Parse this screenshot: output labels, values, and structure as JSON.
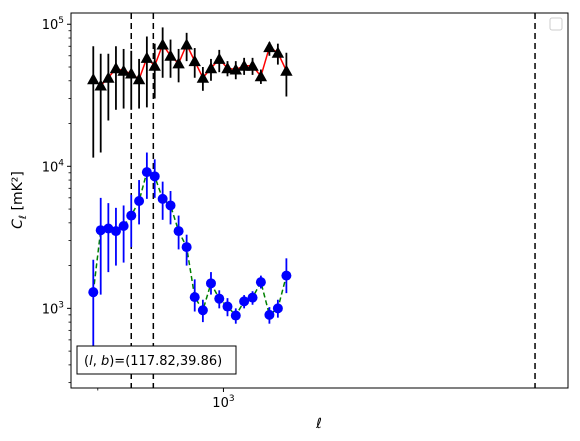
{
  "chart_data": {
    "type": "scatter",
    "xscale": "log",
    "yscale": "log",
    "xlim": [
      880,
      1335
    ],
    "ylim": [
      275,
      120000
    ],
    "xlabel": "ℓ",
    "ylabel": "C_ℓ  [mK²]",
    "x_ticks": [
      {
        "value": 1000,
        "label": "10^3"
      }
    ],
    "y_ticks": [
      {
        "value": 1000,
        "label": "10^3"
      },
      {
        "value": 10000,
        "label": "10^4"
      },
      {
        "value": 100000,
        "label": "10^5"
      }
    ],
    "vlines": [
      925.6,
      942.9,
      1298.6
    ],
    "legend": {
      "placement": "top-right",
      "entries": []
    },
    "annotation": {
      "text": "(l, b)=(117.82,39.86)",
      "placement": "bottom-left"
    },
    "series": [
      {
        "marker": "triangle",
        "marker_color": "#000000",
        "line_color": "#ff0000",
        "line_style": "solid",
        "errorbar_color": "#000000",
        "points": [
          {
            "x": 896.6,
            "y": 41000,
            "ylo": 11500,
            "yhi": 70000
          },
          {
            "x": 902.2,
            "y": 37000,
            "ylo": 12500,
            "yhi": 62000
          },
          {
            "x": 908.0,
            "y": 42000,
            "ylo": 21000,
            "yhi": 62000
          },
          {
            "x": 913.8,
            "y": 49000,
            "ylo": 25000,
            "yhi": 70000
          },
          {
            "x": 919.7,
            "y": 47000,
            "ylo": 25500,
            "yhi": 67000
          },
          {
            "x": 925.6,
            "y": 45000,
            "ylo": 25000,
            "yhi": 65000
          },
          {
            "x": 931.7,
            "y": 41000,
            "ylo": 25500,
            "yhi": 57000
          },
          {
            "x": 937.8,
            "y": 58000,
            "ylo": 26000,
            "yhi": 82000
          },
          {
            "x": 944.0,
            "y": 51000,
            "ylo": 30000,
            "yhi": 73000
          },
          {
            "x": 950.3,
            "y": 72000,
            "ylo": 42000,
            "yhi": 95000
          },
          {
            "x": 956.6,
            "y": 60000,
            "ylo": 42000,
            "yhi": 78000
          },
          {
            "x": 963.1,
            "y": 53000,
            "ylo": 39000,
            "yhi": 67000
          },
          {
            "x": 969.6,
            "y": 72000,
            "ylo": 55000,
            "yhi": 87000
          },
          {
            "x": 976.2,
            "y": 55000,
            "ylo": 42000,
            "yhi": 68000
          },
          {
            "x": 982.9,
            "y": 42000,
            "ylo": 34000,
            "yhi": 50000
          },
          {
            "x": 989.6,
            "y": 49000,
            "ylo": 40000,
            "yhi": 57000
          },
          {
            "x": 996.5,
            "y": 57000,
            "ylo": 46000,
            "yhi": 66000
          },
          {
            "x": 1003.4,
            "y": 49000,
            "ylo": 43000,
            "yhi": 55000
          },
          {
            "x": 1010.4,
            "y": 48000,
            "ylo": 41000,
            "yhi": 55000
          },
          {
            "x": 1017.5,
            "y": 51000,
            "ylo": 44000,
            "yhi": 58000
          },
          {
            "x": 1024.7,
            "y": 51000,
            "ylo": 44000,
            "yhi": 58000
          },
          {
            "x": 1031.9,
            "y": 43000,
            "ylo": 38000,
            "yhi": 48000
          },
          {
            "x": 1039.3,
            "y": 69000,
            "ylo": 60000,
            "yhi": 75000
          },
          {
            "x": 1046.7,
            "y": 63000,
            "ylo": 52000,
            "yhi": 73000
          },
          {
            "x": 1054.2,
            "y": 47000,
            "ylo": 31000,
            "yhi": 63000
          }
        ]
      },
      {
        "marker": "circle",
        "marker_color": "#0000ff",
        "line_color": "#008000",
        "line_style": "dashed",
        "errorbar_color": "#0000ff",
        "points": [
          {
            "x": 896.6,
            "y": 1300,
            "ylo": 450,
            "yhi": 2200
          },
          {
            "x": 902.2,
            "y": 3550,
            "ylo": 1250,
            "yhi": 6000
          },
          {
            "x": 908.0,
            "y": 3650,
            "ylo": 1800,
            "yhi": 5500
          },
          {
            "x": 913.8,
            "y": 3500,
            "ylo": 2000,
            "yhi": 5100
          },
          {
            "x": 919.7,
            "y": 3800,
            "ylo": 2100,
            "yhi": 5300
          },
          {
            "x": 925.6,
            "y": 4500,
            "ylo": 2700,
            "yhi": 6300
          },
          {
            "x": 931.7,
            "y": 5700,
            "ylo": 3900,
            "yhi": 8000
          },
          {
            "x": 937.8,
            "y": 9100,
            "ylo": 5900,
            "yhi": 12500
          },
          {
            "x": 944.0,
            "y": 8500,
            "ylo": 6000,
            "yhi": 11200
          },
          {
            "x": 950.3,
            "y": 5900,
            "ylo": 4200,
            "yhi": 7800
          },
          {
            "x": 956.6,
            "y": 5300,
            "ylo": 3900,
            "yhi": 6700
          },
          {
            "x": 963.1,
            "y": 3500,
            "ylo": 2600,
            "yhi": 4500
          },
          {
            "x": 969.6,
            "y": 2700,
            "ylo": 2000,
            "yhi": 3300
          },
          {
            "x": 976.2,
            "y": 1200,
            "ylo": 950,
            "yhi": 1600
          },
          {
            "x": 982.9,
            "y": 970,
            "ylo": 800,
            "yhi": 1150
          },
          {
            "x": 989.6,
            "y": 1500,
            "ylo": 1250,
            "yhi": 1800
          },
          {
            "x": 996.5,
            "y": 1170,
            "ylo": 1000,
            "yhi": 1340
          },
          {
            "x": 1003.4,
            "y": 1030,
            "ylo": 880,
            "yhi": 1180
          },
          {
            "x": 1010.4,
            "y": 890,
            "ylo": 780,
            "yhi": 1000
          },
          {
            "x": 1017.5,
            "y": 1120,
            "ylo": 1000,
            "yhi": 1240
          },
          {
            "x": 1024.7,
            "y": 1190,
            "ylo": 1060,
            "yhi": 1320
          },
          {
            "x": 1031.9,
            "y": 1530,
            "ylo": 1380,
            "yhi": 1700
          },
          {
            "x": 1039.3,
            "y": 900,
            "ylo": 780,
            "yhi": 1020
          },
          {
            "x": 1046.7,
            "y": 1000,
            "ylo": 860,
            "yhi": 1150
          },
          {
            "x": 1054.2,
            "y": 1700,
            "ylo": 1280,
            "yhi": 2250
          }
        ]
      }
    ]
  }
}
